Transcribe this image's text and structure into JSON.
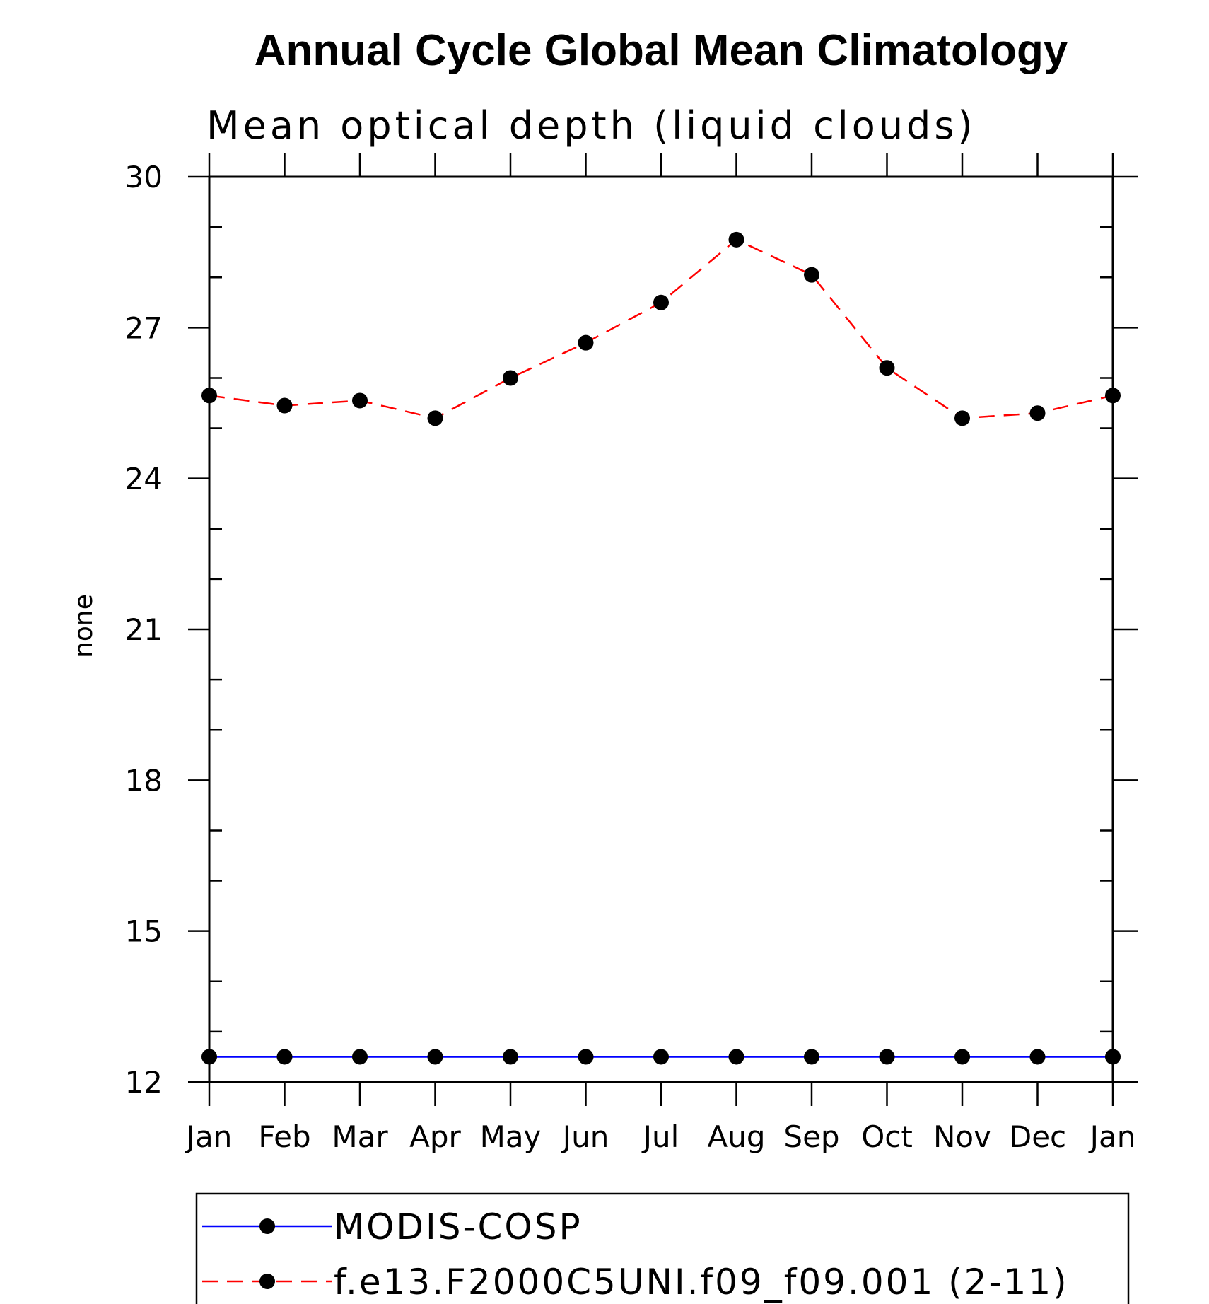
{
  "chart_data": {
    "type": "line",
    "title": "Annual Cycle Global Mean Climatology",
    "subtitle": "Mean optical depth (liquid clouds)",
    "xlabel": "",
    "ylabel": "none",
    "categories": [
      "Jan",
      "Feb",
      "Mar",
      "Apr",
      "May",
      "Jun",
      "Jul",
      "Aug",
      "Sep",
      "Oct",
      "Nov",
      "Dec",
      "Jan"
    ],
    "ylim": [
      12,
      30
    ],
    "yticks": [
      "30",
      "27",
      "24",
      "21",
      "18",
      "15",
      "12"
    ],
    "ytick_values": [
      30,
      27,
      24,
      21,
      18,
      15,
      12
    ],
    "series": [
      {
        "name": "MODIS-COSP",
        "color": "#0000ff",
        "dash": "solid",
        "marker": "filled-circle",
        "values": [
          12.5,
          12.5,
          12.5,
          12.5,
          12.5,
          12.5,
          12.5,
          12.5,
          12.5,
          12.5,
          12.5,
          12.5,
          12.5
        ]
      },
      {
        "name": "f.e13.F2000C5UNI.f09_f09.001 (2-11)",
        "color": "#ff0000",
        "dash": "dashed",
        "marker": "filled-circle",
        "values": [
          25.65,
          25.45,
          25.55,
          25.2,
          26.0,
          26.7,
          27.5,
          28.75,
          28.05,
          26.2,
          25.2,
          25.3,
          25.65
        ]
      }
    ],
    "legend_position": "bottom"
  }
}
